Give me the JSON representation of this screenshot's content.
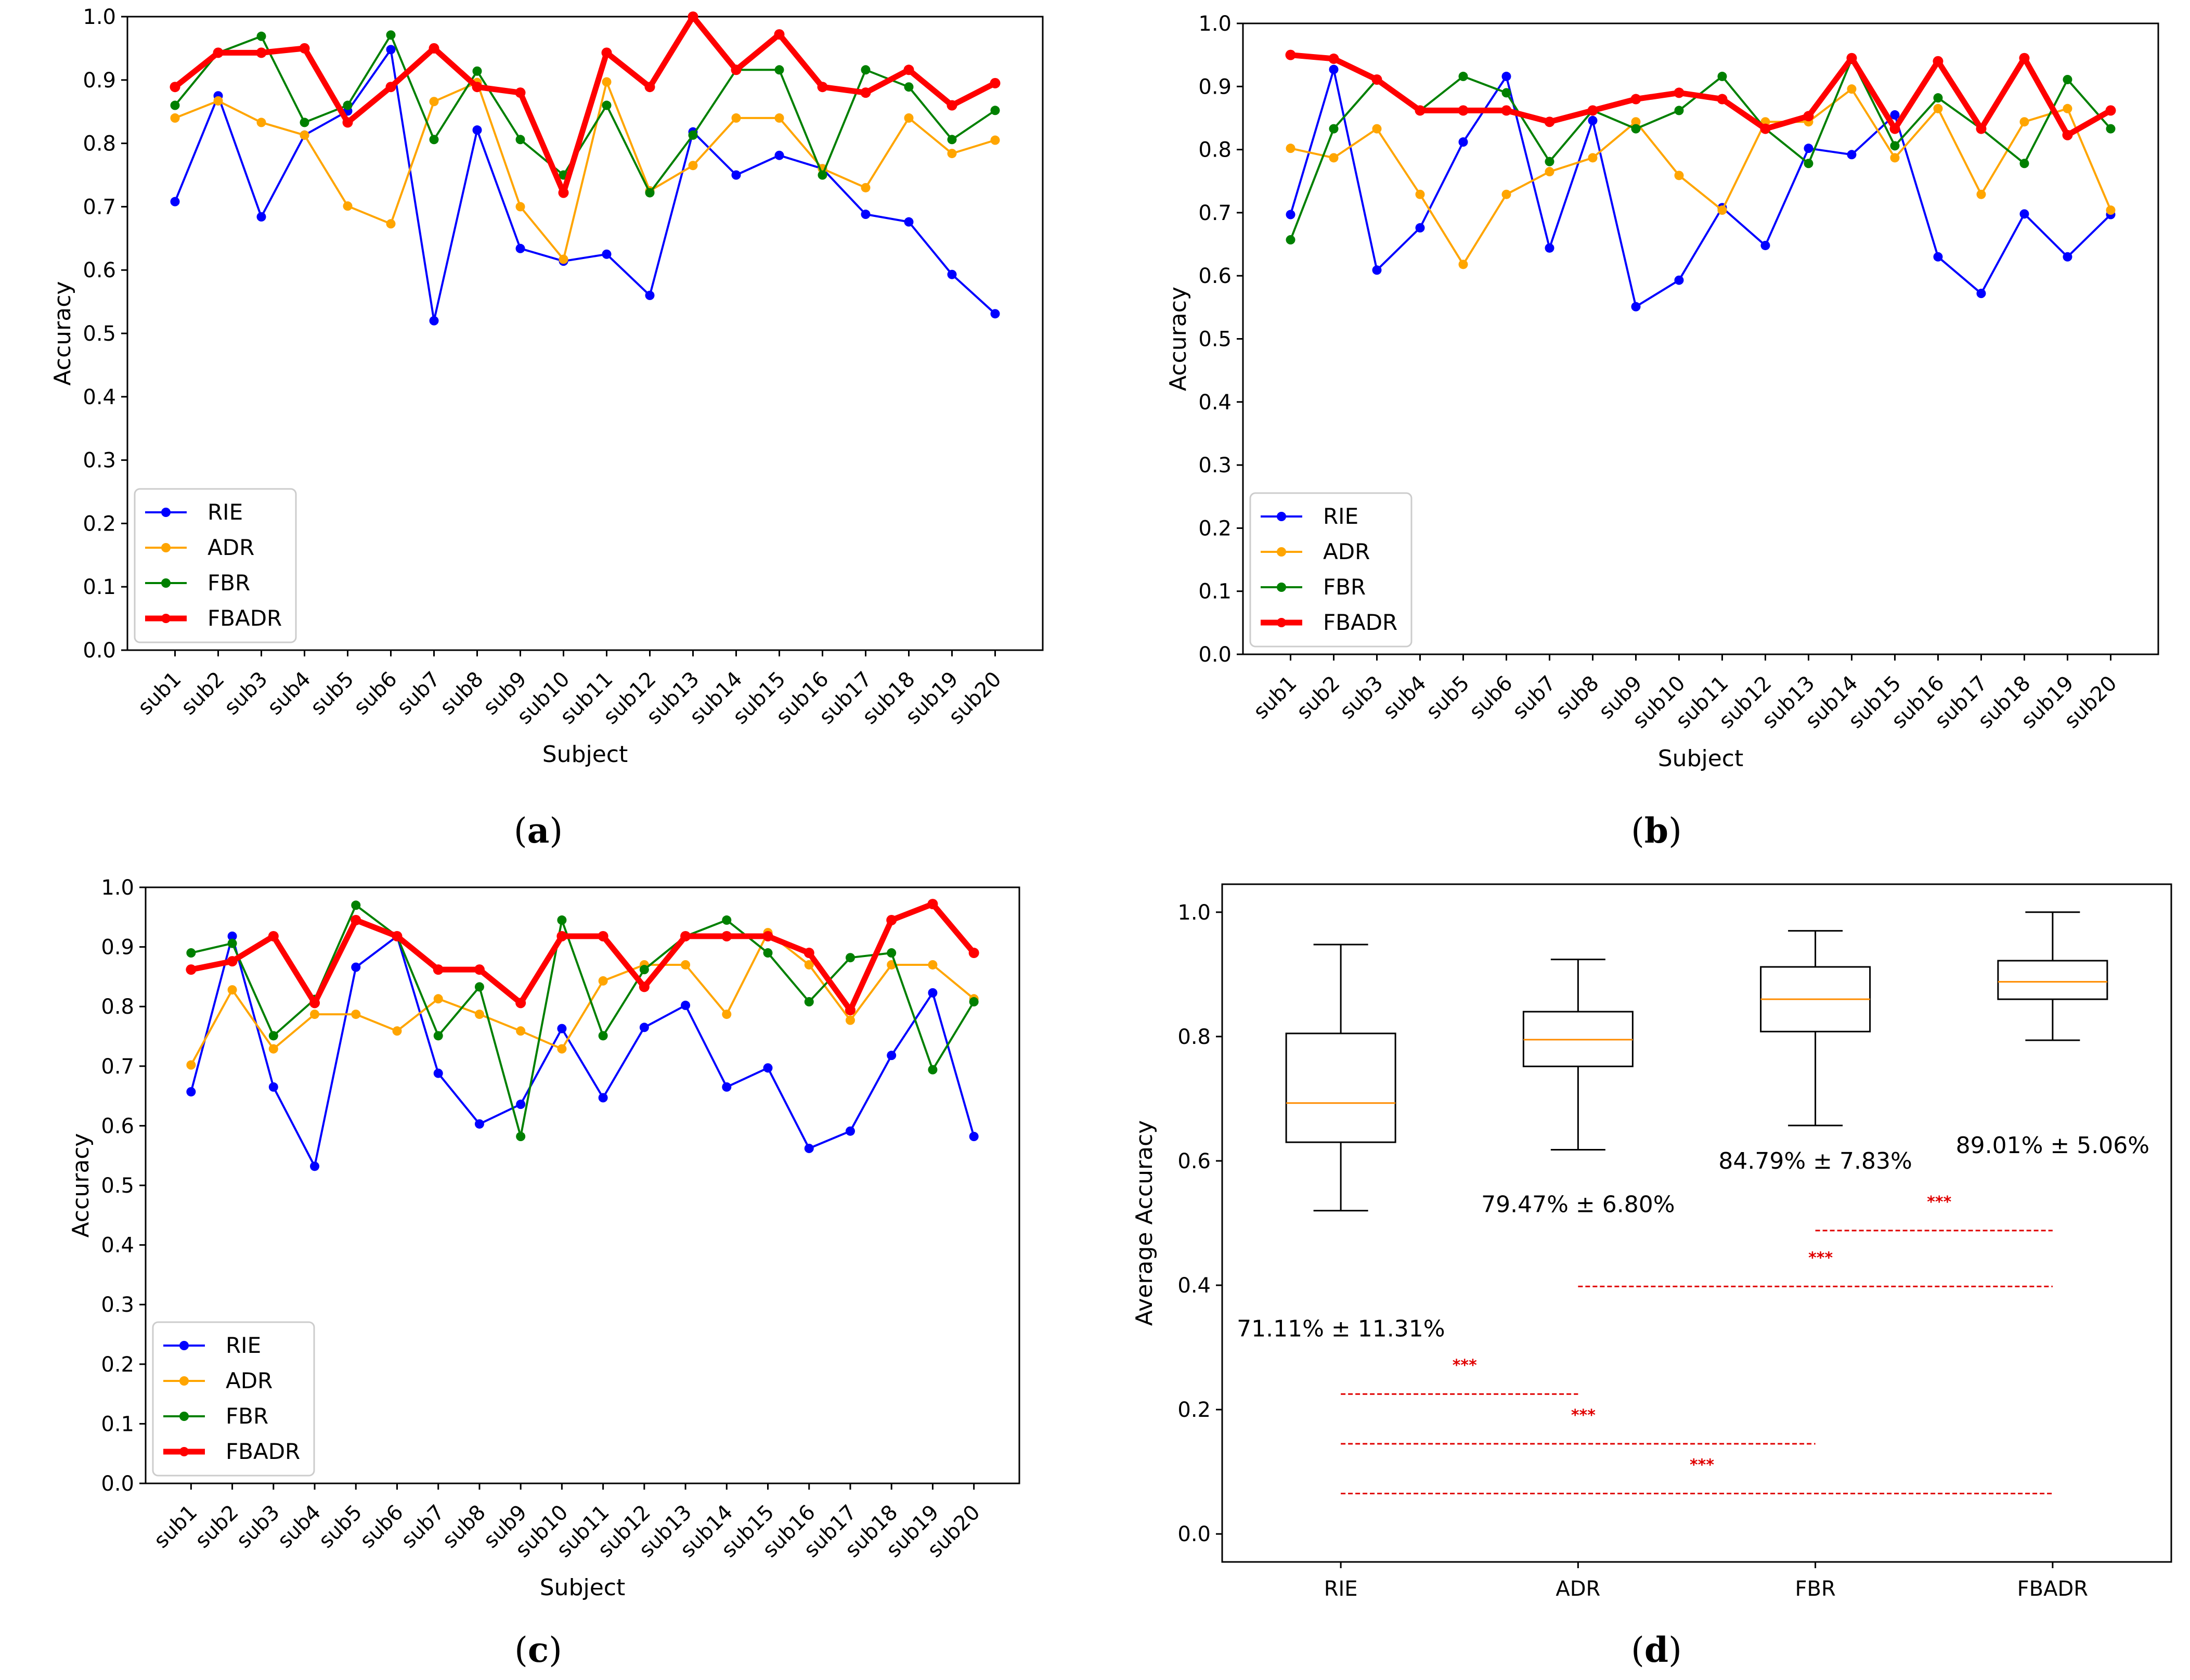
{
  "colors": {
    "RIE": "#0000ff",
    "ADR": "#ffa500",
    "FBR": "#008000",
    "FBADR": "#ff0000",
    "median": "#ff8c00",
    "sig": "#e00000"
  },
  "chart_data": [
    {
      "type": "line",
      "panel": "a",
      "caption": "(a)",
      "caption_letter": "a",
      "xlabel": "Subject",
      "ylabel": "Accuracy",
      "ylim": [
        0,
        1.0
      ],
      "yticks": [
        0.0,
        0.1,
        0.2,
        0.3,
        0.4,
        0.5,
        0.6,
        0.7,
        0.8,
        0.9,
        1.0
      ],
      "categories": [
        "sub1",
        "sub2",
        "sub3",
        "sub4",
        "sub5",
        "sub6",
        "sub7",
        "sub8",
        "sub9",
        "sub10",
        "sub11",
        "sub12",
        "sub13",
        "sub14",
        "sub15",
        "sub16",
        "sub17",
        "sub18",
        "sub19",
        "sub20"
      ],
      "legend_position": "lower-left",
      "series": [
        {
          "name": "RIE",
          "values": [
            0.708,
            0.875,
            0.684,
            0.813,
            0.851,
            0.948,
            0.52,
            0.821,
            0.634,
            0.614,
            0.625,
            0.56,
            0.818,
            0.75,
            0.781,
            0.76,
            0.688,
            0.676,
            0.593,
            0.531
          ]
        },
        {
          "name": "ADR",
          "values": [
            0.84,
            0.867,
            0.833,
            0.813,
            0.701,
            0.673,
            0.866,
            0.896,
            0.7,
            0.617,
            0.897,
            0.725,
            0.765,
            0.84,
            0.84,
            0.76,
            0.73,
            0.84,
            0.784,
            0.805
          ]
        },
        {
          "name": "FBR",
          "values": [
            0.86,
            0.943,
            0.969,
            0.833,
            0.86,
            0.971,
            0.806,
            0.914,
            0.806,
            0.75,
            0.86,
            0.722,
            0.813,
            0.916,
            0.916,
            0.75,
            0.916,
            0.889,
            0.806,
            0.852
          ]
        },
        {
          "name": "FBADR",
          "values": [
            0.889,
            0.943,
            0.943,
            0.95,
            0.833,
            0.889,
            0.95,
            0.889,
            0.88,
            0.722,
            0.943,
            0.889,
            1.0,
            0.916,
            0.972,
            0.889,
            0.88,
            0.916,
            0.86,
            0.895
          ]
        }
      ]
    },
    {
      "type": "line",
      "panel": "b",
      "caption": "(b)",
      "caption_letter": "b",
      "xlabel": "Subject",
      "ylabel": "Accuracy",
      "ylim": [
        0,
        1.0
      ],
      "yticks": [
        0.0,
        0.1,
        0.2,
        0.3,
        0.4,
        0.5,
        0.6,
        0.7,
        0.8,
        0.9,
        1.0
      ],
      "categories": [
        "sub1",
        "sub2",
        "sub3",
        "sub4",
        "sub5",
        "sub6",
        "sub7",
        "sub8",
        "sub9",
        "sub10",
        "sub11",
        "sub12",
        "sub13",
        "sub14",
        "sub15",
        "sub16",
        "sub17",
        "sub18",
        "sub19",
        "sub20"
      ],
      "legend_position": "lower-left",
      "series": [
        {
          "name": "RIE",
          "values": [
            0.697,
            0.927,
            0.609,
            0.676,
            0.812,
            0.916,
            0.644,
            0.846,
            0.551,
            0.593,
            0.708,
            0.648,
            0.802,
            0.792,
            0.855,
            0.63,
            0.572,
            0.698,
            0.63,
            0.697
          ]
        },
        {
          "name": "ADR",
          "values": [
            0.802,
            0.787,
            0.833,
            0.729,
            0.618,
            0.729,
            0.765,
            0.787,
            0.844,
            0.759,
            0.704,
            0.844,
            0.844,
            0.896,
            0.787,
            0.865,
            0.729,
            0.844,
            0.865,
            0.704
          ]
        },
        {
          "name": "FBR",
          "values": [
            0.657,
            0.833,
            0.911,
            0.862,
            0.916,
            0.89,
            0.781,
            0.862,
            0.833,
            0.862,
            0.916,
            0.833,
            0.778,
            0.943,
            0.806,
            0.882,
            0.833,
            0.778,
            0.911,
            0.833
          ]
        },
        {
          "name": "FBADR",
          "values": [
            0.95,
            0.944,
            0.911,
            0.862,
            0.862,
            0.862,
            0.844,
            0.862,
            0.88,
            0.89,
            0.88,
            0.833,
            0.853,
            0.945,
            0.833,
            0.94,
            0.833,
            0.945,
            0.823,
            0.862
          ]
        }
      ]
    },
    {
      "type": "line",
      "panel": "c",
      "caption": "(c)",
      "caption_letter": "c",
      "xlabel": "Subject",
      "ylabel": "Accuracy",
      "ylim": [
        0,
        1.0
      ],
      "yticks": [
        0.0,
        0.1,
        0.2,
        0.3,
        0.4,
        0.5,
        0.6,
        0.7,
        0.8,
        0.9,
        1.0
      ],
      "categories": [
        "sub1",
        "sub2",
        "sub3",
        "sub4",
        "sub5",
        "sub6",
        "sub7",
        "sub8",
        "sub9",
        "sub10",
        "sub11",
        "sub12",
        "sub13",
        "sub14",
        "sub15",
        "sub16",
        "sub17",
        "sub18",
        "sub19",
        "sub20"
      ],
      "legend_position": "lower-left",
      "series": [
        {
          "name": "RIE",
          "values": [
            0.657,
            0.918,
            0.665,
            0.532,
            0.866,
            0.918,
            0.688,
            0.603,
            0.636,
            0.763,
            0.647,
            0.765,
            0.802,
            0.665,
            0.697,
            0.562,
            0.591,
            0.718,
            0.823,
            0.582
          ]
        },
        {
          "name": "ADR",
          "values": [
            0.702,
            0.828,
            0.729,
            0.787,
            0.787,
            0.759,
            0.813,
            0.787,
            0.759,
            0.729,
            0.843,
            0.87,
            0.87,
            0.787,
            0.924,
            0.87,
            0.777,
            0.87,
            0.87,
            0.813
          ]
        },
        {
          "name": "FBR",
          "values": [
            0.89,
            0.906,
            0.751,
            0.812,
            0.97,
            0.918,
            0.751,
            0.833,
            0.582,
            0.945,
            0.751,
            0.862,
            0.918,
            0.945,
            0.89,
            0.808,
            0.882,
            0.89,
            0.694,
            0.808
          ]
        },
        {
          "name": "FBADR",
          "values": [
            0.862,
            0.876,
            0.918,
            0.806,
            0.945,
            0.918,
            0.862,
            0.862,
            0.806,
            0.918,
            0.918,
            0.833,
            0.918,
            0.918,
            0.918,
            0.89,
            0.794,
            0.945,
            0.972,
            0.89
          ]
        }
      ]
    },
    {
      "type": "box",
      "panel": "d",
      "caption": "(d)",
      "caption_letter": "d",
      "xlabel": "",
      "ylabel": "Average Accuracy",
      "ylim": [
        0,
        1.0
      ],
      "yticks": [
        0.0,
        0.2,
        0.4,
        0.6,
        0.8,
        1.0
      ],
      "categories": [
        "RIE",
        "ADR",
        "FBR",
        "FBADR"
      ],
      "boxes": [
        {
          "name": "RIE",
          "min": 0.52,
          "q1": 0.63,
          "median": 0.693,
          "q3": 0.805,
          "max": 0.948,
          "label": "71.11% ± 11.31%"
        },
        {
          "name": "ADR",
          "min": 0.618,
          "q1": 0.752,
          "median": 0.795,
          "q3": 0.84,
          "max": 0.924,
          "label": "79.47% ± 6.80%"
        },
        {
          "name": "FBR",
          "min": 0.657,
          "q1": 0.808,
          "median": 0.86,
          "q3": 0.912,
          "max": 0.97,
          "label": "84.79% ± 7.83%"
        },
        {
          "name": "FBADR",
          "min": 0.794,
          "q1": 0.86,
          "median": 0.888,
          "q3": 0.922,
          "max": 1.0,
          "label": "89.01% ± 5.06%"
        }
      ],
      "significance": [
        {
          "from": "FBR",
          "to": "FBADR",
          "y": 0.488,
          "label": "***"
        },
        {
          "from": "ADR",
          "to": "FBADR",
          "y": 0.398,
          "label": "***"
        },
        {
          "from": "RIE",
          "to": "ADR",
          "y": 0.225,
          "label": "***"
        },
        {
          "from": "RIE",
          "to": "FBR",
          "y": 0.145,
          "label": "***"
        },
        {
          "from": "RIE",
          "to": "FBADR",
          "y": 0.065,
          "label": "***"
        }
      ]
    }
  ]
}
